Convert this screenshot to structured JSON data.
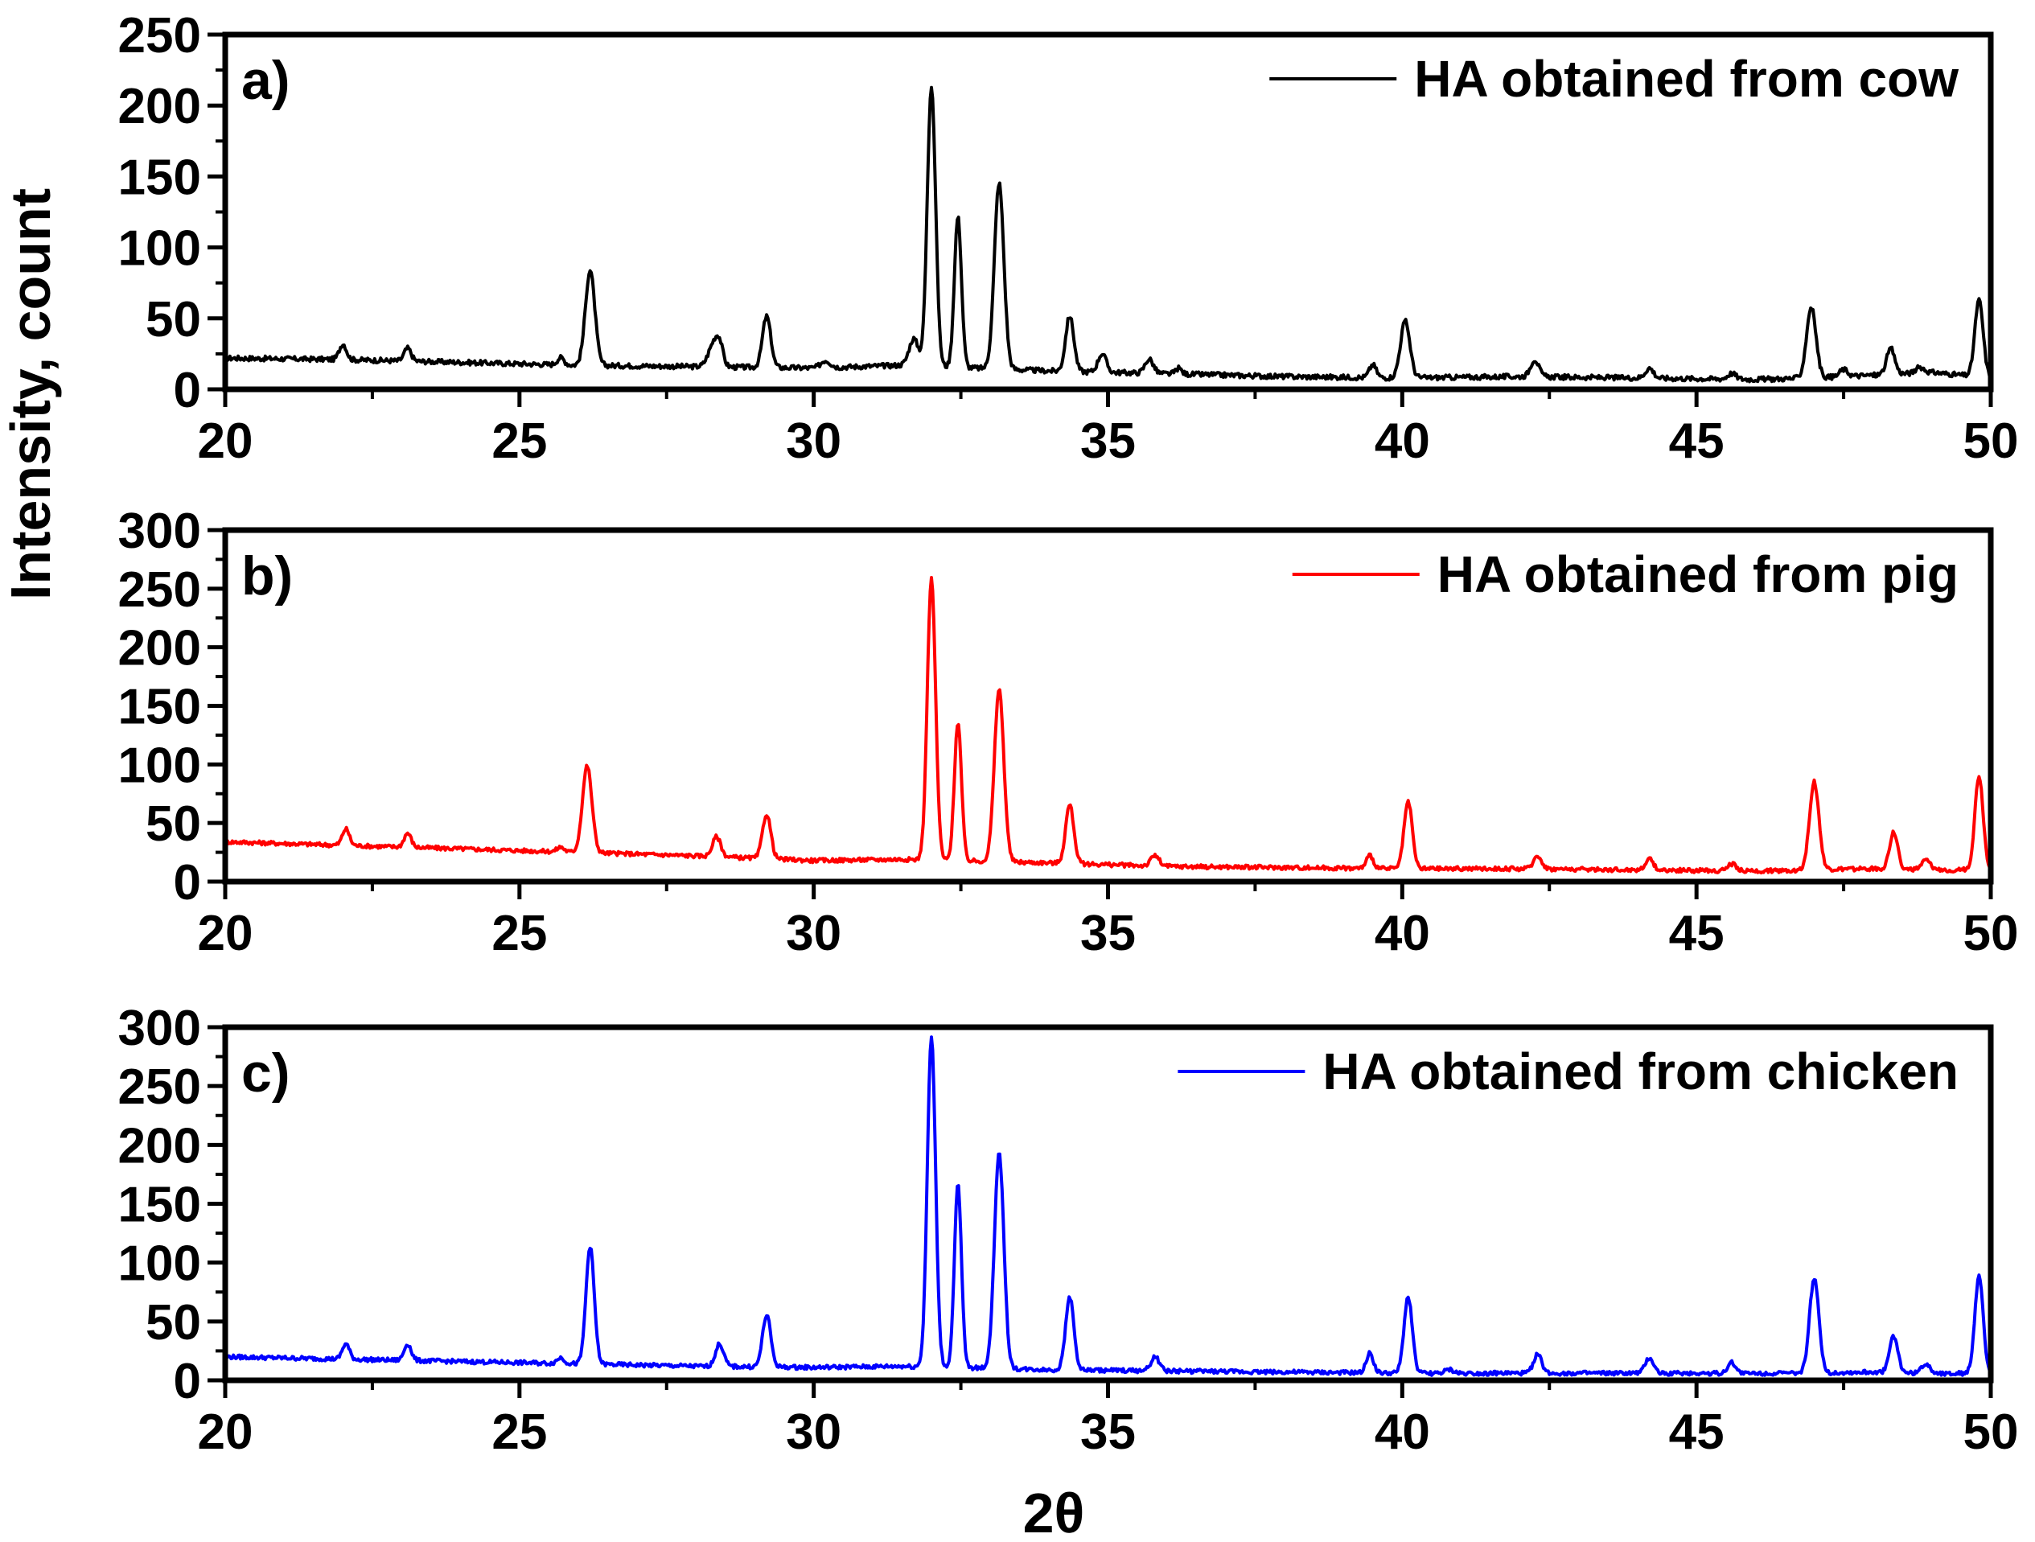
{
  "figure": {
    "ylabel": "Intensity, count",
    "xlabel": "2θ"
  },
  "chart_data": [
    {
      "type": "line",
      "panel_label": "a)",
      "xlim": [
        20,
        50
      ],
      "ylim": [
        0,
        250
      ],
      "xticks": [
        20,
        25,
        30,
        35,
        40,
        45,
        50
      ],
      "yticks": [
        0,
        50,
        100,
        150,
        200,
        250
      ],
      "legend_position": "top-right",
      "series": [
        {
          "name": "HA obtained from cow",
          "color": "#000000",
          "baseline": [
            [
              20,
              22
            ],
            [
              22,
              21
            ],
            [
              24,
              19
            ],
            [
              26,
              17
            ],
            [
              28,
              16
            ],
            [
              30,
              15
            ],
            [
              31.5,
              17
            ],
            [
              34,
              13
            ],
            [
              36,
              11
            ],
            [
              38,
              9
            ],
            [
              40,
              8
            ],
            [
              42,
              9
            ],
            [
              44,
              8
            ],
            [
              46,
              7
            ],
            [
              47,
              8
            ],
            [
              48,
              10
            ],
            [
              49,
              12
            ],
            [
              50,
              8
            ]
          ],
          "peaks": [
            [
              22.0,
              11,
              0.06
            ],
            [
              23.1,
              9,
              0.06
            ],
            [
              25.7,
              5,
              0.06
            ],
            [
              26.2,
              67,
              0.08
            ],
            [
              28.3,
              16,
              0.09
            ],
            [
              28.4,
              12,
              0.06
            ],
            [
              29.2,
              36,
              0.07
            ],
            [
              30.2,
              5,
              0.08
            ],
            [
              31.7,
              19,
              0.08
            ],
            [
              32.0,
              198,
              0.07
            ],
            [
              32.45,
              106,
              0.06
            ],
            [
              33.15,
              131,
              0.08
            ],
            [
              34.35,
              39,
              0.07
            ],
            [
              34.9,
              13,
              0.07
            ],
            [
              35.7,
              10,
              0.07
            ],
            [
              36.2,
              4,
              0.05
            ],
            [
              39.5,
              9,
              0.06
            ],
            [
              40.05,
              40,
              0.08
            ],
            [
              42.25,
              12,
              0.07
            ],
            [
              44.2,
              7,
              0.07
            ],
            [
              45.6,
              4,
              0.07
            ],
            [
              46.95,
              50,
              0.08
            ],
            [
              47.5,
              5,
              0.07
            ],
            [
              48.3,
              18,
              0.07
            ],
            [
              48.8,
              4,
              0.07
            ],
            [
              49.8,
              54,
              0.07
            ]
          ]
        }
      ]
    },
    {
      "type": "line",
      "panel_label": "b)",
      "xlim": [
        20,
        50
      ],
      "ylim": [
        0,
        300
      ],
      "xticks": [
        20,
        25,
        30,
        35,
        40,
        45,
        50
      ],
      "yticks": [
        0,
        50,
        100,
        150,
        200,
        250,
        300
      ],
      "legend_position": "top-right",
      "series": [
        {
          "name": "HA obtained from pig",
          "color": "#ff0000",
          "baseline": [
            [
              20,
              34
            ],
            [
              22,
              31
            ],
            [
              24,
              28
            ],
            [
              26,
              25
            ],
            [
              28,
              22
            ],
            [
              30,
              18
            ],
            [
              31.5,
              19
            ],
            [
              34,
              16
            ],
            [
              36,
              13
            ],
            [
              38,
              12
            ],
            [
              40,
              11
            ],
            [
              42,
              11
            ],
            [
              44,
              10
            ],
            [
              46,
              9
            ],
            [
              47,
              10
            ],
            [
              48,
              11
            ],
            [
              49,
              10
            ],
            [
              50,
              10
            ]
          ],
          "peaks": [
            [
              22.05,
              14,
              0.06
            ],
            [
              23.1,
              12,
              0.06
            ],
            [
              25.7,
              4,
              0.06
            ],
            [
              26.15,
              74,
              0.08
            ],
            [
              28.35,
              17,
              0.07
            ],
            [
              29.2,
              38,
              0.07
            ],
            [
              32.0,
              240,
              0.07
            ],
            [
              32.45,
              118,
              0.06
            ],
            [
              33.15,
              147,
              0.08
            ],
            [
              34.35,
              50,
              0.07
            ],
            [
              35.8,
              9,
              0.07
            ],
            [
              39.45,
              11,
              0.06
            ],
            [
              40.1,
              57,
              0.07
            ],
            [
              42.3,
              11,
              0.07
            ],
            [
              44.2,
              9,
              0.07
            ],
            [
              45.6,
              6,
              0.07
            ],
            [
              47.0,
              75,
              0.08
            ],
            [
              48.35,
              31,
              0.07
            ],
            [
              48.9,
              8,
              0.07
            ],
            [
              49.8,
              80,
              0.07
            ]
          ]
        }
      ]
    },
    {
      "type": "line",
      "panel_label": "c)",
      "xlim": [
        20,
        50
      ],
      "ylim": [
        0,
        300
      ],
      "xticks": [
        20,
        25,
        30,
        35,
        40,
        45,
        50
      ],
      "yticks": [
        0,
        50,
        100,
        150,
        200,
        250,
        300
      ],
      "legend_position": "top-right",
      "series": [
        {
          "name": "HA obtained from chicken",
          "color": "#0000ff",
          "baseline": [
            [
              20,
              20
            ],
            [
              22,
              18
            ],
            [
              24,
              16
            ],
            [
              26,
              14
            ],
            [
              28,
              12
            ],
            [
              30,
              11
            ],
            [
              31.5,
              12
            ],
            [
              34,
              9
            ],
            [
              36,
              8
            ],
            [
              38,
              7
            ],
            [
              40,
              6
            ],
            [
              42,
              6
            ],
            [
              44,
              6
            ],
            [
              46,
              6
            ],
            [
              47,
              6
            ],
            [
              48,
              7
            ],
            [
              49,
              6
            ],
            [
              50,
              6
            ]
          ],
          "peaks": [
            [
              22.05,
              13,
              0.06
            ],
            [
              23.1,
              14,
              0.06
            ],
            [
              25.7,
              5,
              0.06
            ],
            [
              26.2,
              100,
              0.07
            ],
            [
              28.4,
              19,
              0.07
            ],
            [
              29.2,
              44,
              0.07
            ],
            [
              32.0,
              280,
              0.07
            ],
            [
              32.45,
              155,
              0.06
            ],
            [
              33.15,
              183,
              0.08
            ],
            [
              34.35,
              62,
              0.07
            ],
            [
              35.8,
              12,
              0.07
            ],
            [
              39.45,
              17,
              0.06
            ],
            [
              40.1,
              65,
              0.07
            ],
            [
              40.8,
              3,
              0.07
            ],
            [
              42.3,
              16,
              0.07
            ],
            [
              44.2,
              13,
              0.07
            ],
            [
              45.6,
              9,
              0.07
            ],
            [
              47.0,
              80,
              0.08
            ],
            [
              48.35,
              31,
              0.07
            ],
            [
              48.9,
              8,
              0.07
            ],
            [
              49.8,
              82,
              0.07
            ]
          ]
        }
      ]
    }
  ]
}
